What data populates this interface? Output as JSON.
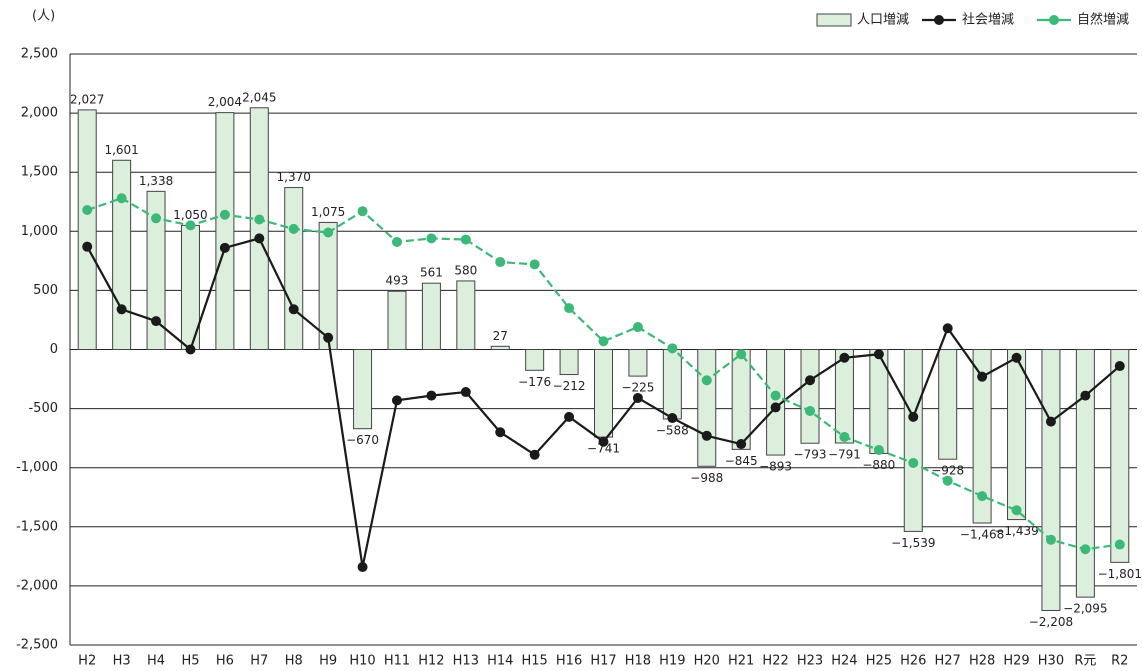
{
  "chart_data": {
    "type": "bar_line",
    "y_unit_label": "(人)",
    "categories": [
      "H2",
      "H3",
      "H4",
      "H5",
      "H6",
      "H7",
      "H8",
      "H9",
      "H10",
      "H11",
      "H12",
      "H13",
      "H14",
      "H15",
      "H16",
      "H17",
      "H18",
      "H19",
      "H20",
      "H21",
      "H22",
      "H23",
      "H24",
      "H25",
      "H26",
      "H27",
      "H28",
      "H29",
      "H30",
      "R元",
      "R2"
    ],
    "series": [
      {
        "name": "人口増減",
        "type": "bar",
        "color": "#dcefdc",
        "edge_color": "#444",
        "values": [
          2027,
          1601,
          1338,
          1050,
          2004,
          2045,
          1370,
          1075,
          -670,
          493,
          561,
          580,
          27,
          -176,
          -212,
          -741,
          -225,
          -588,
          -988,
          -845,
          -893,
          -793,
          -791,
          -880,
          -1539,
          -928,
          -1468,
          -1439,
          -2208,
          -2095,
          -1801
        ],
        "value_labels": [
          "2,027",
          "1,601",
          "1,338",
          "1,050",
          "2,004",
          "2,045",
          "1,370",
          "1,075",
          "−670",
          "493",
          "561",
          "580",
          "27",
          "−176",
          "−212",
          "−741",
          "−225",
          "−588",
          "−988",
          "−845",
          "−893",
          "−793",
          "−791",
          "−880",
          "−1,539",
          "−928",
          "−1,468",
          "−1,439",
          "−2,208",
          "−2,095",
          "−1,801"
        ]
      },
      {
        "name": "社会増減",
        "type": "line",
        "color": "#1a1a1a",
        "dashed": false,
        "values": [
          870,
          340,
          240,
          0,
          860,
          940,
          340,
          100,
          -1840,
          -430,
          -390,
          -360,
          -700,
          -890,
          -570,
          -780,
          -410,
          -580,
          -730,
          -800,
          -490,
          -260,
          -70,
          -40,
          -570,
          180,
          -230,
          -70,
          -610,
          -390,
          -140
        ]
      },
      {
        "name": "自然増減",
        "type": "line",
        "color": "#3cb878",
        "dashed": true,
        "values": [
          1180,
          1280,
          1110,
          1050,
          1140,
          1100,
          1020,
          990,
          1170,
          910,
          940,
          930,
          740,
          720,
          350,
          70,
          190,
          10,
          -260,
          -40,
          -390,
          -520,
          -740,
          -850,
          -960,
          -1110,
          -1240,
          -1360,
          -1610,
          -1690,
          -1650
        ]
      }
    ],
    "ylim": [
      -2500,
      2500
    ],
    "yticks": [
      {
        "value": -2500,
        "label": "-2,500"
      },
      {
        "value": -2000,
        "label": "-2,000"
      },
      {
        "value": -1500,
        "label": "-1,500"
      },
      {
        "value": -1000,
        "label": "-1,000"
      },
      -500,
      0,
      500,
      {
        "value": 1000,
        "label": "1,000"
      },
      {
        "value": 1500,
        "label": "1,500"
      },
      {
        "value": 2000,
        "label": "2,000"
      },
      {
        "value": 2500,
        "label": "2,500"
      }
    ],
    "grid": true,
    "legend": "top-right"
  }
}
